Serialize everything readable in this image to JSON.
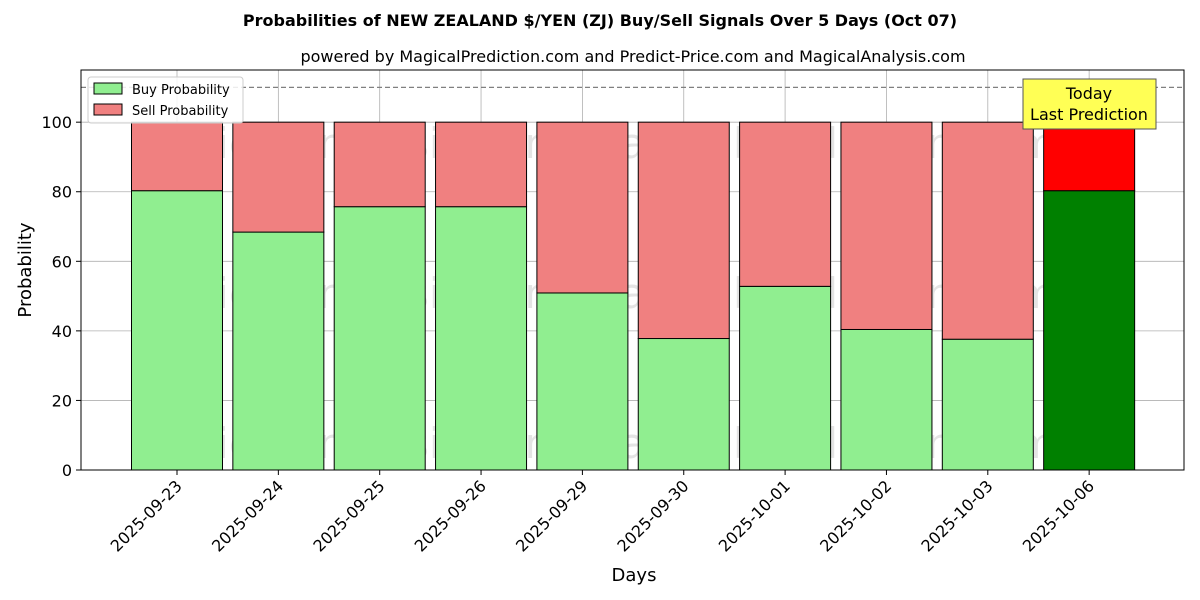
{
  "chart_data": {
    "type": "bar",
    "stacked": true,
    "title": "Probabilities of NEW ZEALAND $/YEN (ZJ) Buy/Sell Signals Over 5 Days (Oct 07)",
    "subtitle": "powered by MagicalPrediction.com and Predict-Price.com and MagicalAnalysis.com",
    "xlabel": "Days",
    "ylabel": "Probability",
    "ylim": [
      0,
      115
    ],
    "yticks": [
      0,
      20,
      40,
      60,
      80,
      100
    ],
    "grid": true,
    "legend_position": "top-left",
    "categories": [
      "2025-09-23",
      "2025-09-24",
      "2025-09-25",
      "2025-09-26",
      "2025-09-29",
      "2025-09-30",
      "2025-10-01",
      "2025-10-02",
      "2025-10-03",
      "2025-10-06"
    ],
    "series": [
      {
        "name": "Buy Probability",
        "color": "#90EE90",
        "values": [
          80.3,
          68.4,
          75.7,
          75.7,
          50.9,
          37.8,
          52.8,
          40.4,
          37.6,
          80.3
        ]
      },
      {
        "name": "Sell Probability",
        "color": "#F08080",
        "values": [
          19.7,
          31.6,
          24.3,
          24.3,
          49.1,
          62.2,
          47.2,
          59.6,
          62.4,
          19.7
        ]
      }
    ],
    "highlight": {
      "index": 9,
      "buy_color": "#008000",
      "sell_color": "#FF0000"
    },
    "reference_line": {
      "y": 110,
      "style": "dashed",
      "color": "#808080"
    },
    "annotation": {
      "lines": [
        "Today",
        "Last Prediction"
      ],
      "background": "#FFFF55"
    },
    "watermarks": [
      "MagicalAnalysis.com",
      "MagicalPrediction.com"
    ]
  }
}
